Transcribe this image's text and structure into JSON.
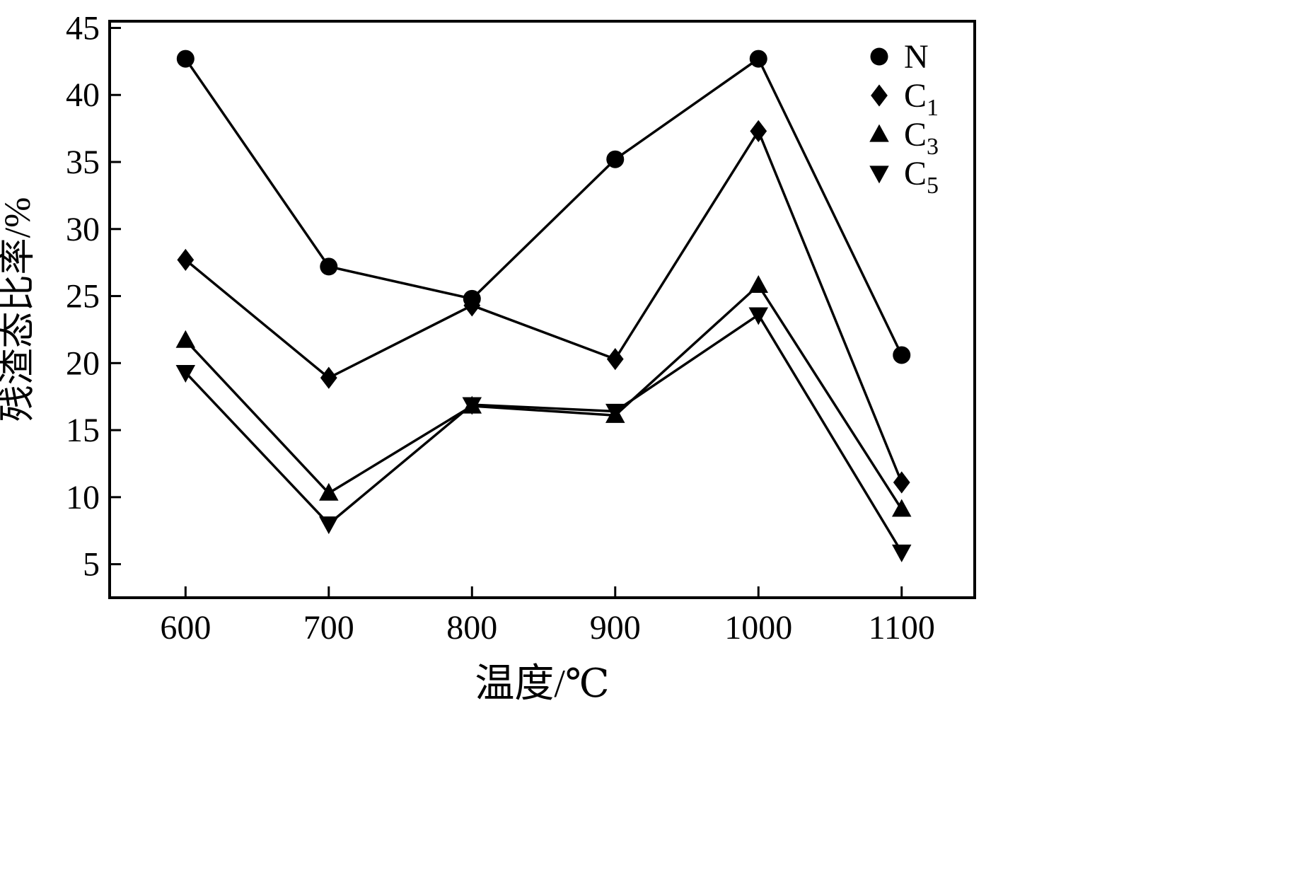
{
  "figure": {
    "background": "#ffffff",
    "axis_color": "#000000"
  },
  "chart_data": {
    "type": "line",
    "title": "",
    "xlabel": "温度/℃",
    "ylabel": "残渣态比率/%",
    "x": [
      600,
      700,
      800,
      900,
      1000,
      1100
    ],
    "xlim": [
      547,
      1151
    ],
    "ylim": [
      2.5,
      45.5
    ],
    "xticks": [
      600,
      700,
      800,
      900,
      1000,
      1100
    ],
    "yticks": [
      5,
      10,
      15,
      20,
      25,
      30,
      35,
      40,
      45
    ],
    "grid": false,
    "legend_position": "top-right-inside",
    "line_color": "#000000",
    "marker_color": "#000000",
    "series": [
      {
        "name": "N",
        "sub": "",
        "marker": "circle",
        "values": [
          42.7,
          27.2,
          24.8,
          35.2,
          42.7,
          20.6
        ]
      },
      {
        "name": "C",
        "sub": "1",
        "marker": "diamond",
        "values": [
          27.7,
          18.9,
          24.3,
          20.3,
          37.3,
          11.1
        ]
      },
      {
        "name": "C",
        "sub": "3",
        "marker": "triangle-up",
        "values": [
          21.7,
          10.3,
          16.8,
          16.1,
          25.8,
          9.1
        ]
      },
      {
        "name": "C",
        "sub": "5",
        "marker": "triangle-down",
        "values": [
          19.3,
          8.0,
          16.9,
          16.4,
          23.6,
          5.9
        ]
      }
    ]
  }
}
